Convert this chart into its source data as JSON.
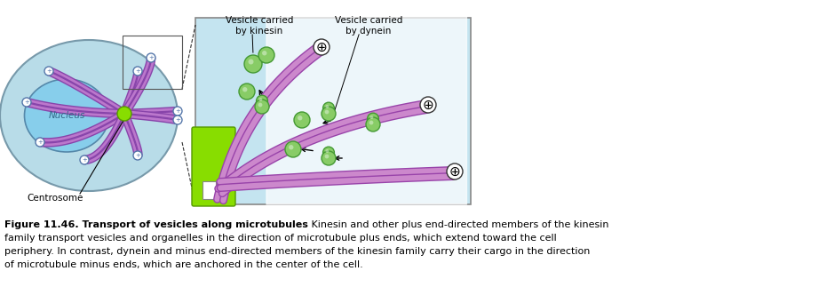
{
  "title_bold": "Figure 11.46. Transport of vesicles along microtubules",
  "title_normal": " Kinesin and other plus end-directed members of the kinesin family transport vesicles and organelles in the direction of microtubule plus ends, which extend toward the cell periphery. In contrast, dynein and minus end-directed members of the kinesin family carry their cargo in the direction of microtubule minus ends, which are anchored in the center of the cell.",
  "caption_lines": [
    [
      "Figure 11.46. Transport of vesicles along microtubules",
      true,
      " Kinesin and other plus end-directed members of the kinesin"
    ],
    [
      "family transport vesicles and organelles in the direction of microtubule plus ends, which extend toward the cell",
      false,
      ""
    ],
    [
      "periphery. In contrast, dynein and minus end-directed members of the kinesin family carry their cargo in the direction",
      false,
      ""
    ],
    [
      "of microtubule minus ends, which are anchored in the center of the cell.",
      false,
      ""
    ]
  ],
  "label_kinesin": "Vesicle carried\nby kinesin",
  "label_dynein": "Vesicle carried\nby dynein",
  "label_nucleus": "Nucleus",
  "label_centrosome": "Centrosome",
  "cell_fill": "#b8dce8",
  "cell_edge": "#7799aa",
  "nucleus_fill": "#87ceeb",
  "nucleus_edge": "#5588aa",
  "mt_color": "#bb77cc",
  "mt_edge": "#8844aa",
  "green_fill": "#88dd00",
  "vesicle_fill": "#88cc66",
  "vesicle_edge": "#449933",
  "right_bg": "#c4e4f0",
  "right_border": "#888888"
}
